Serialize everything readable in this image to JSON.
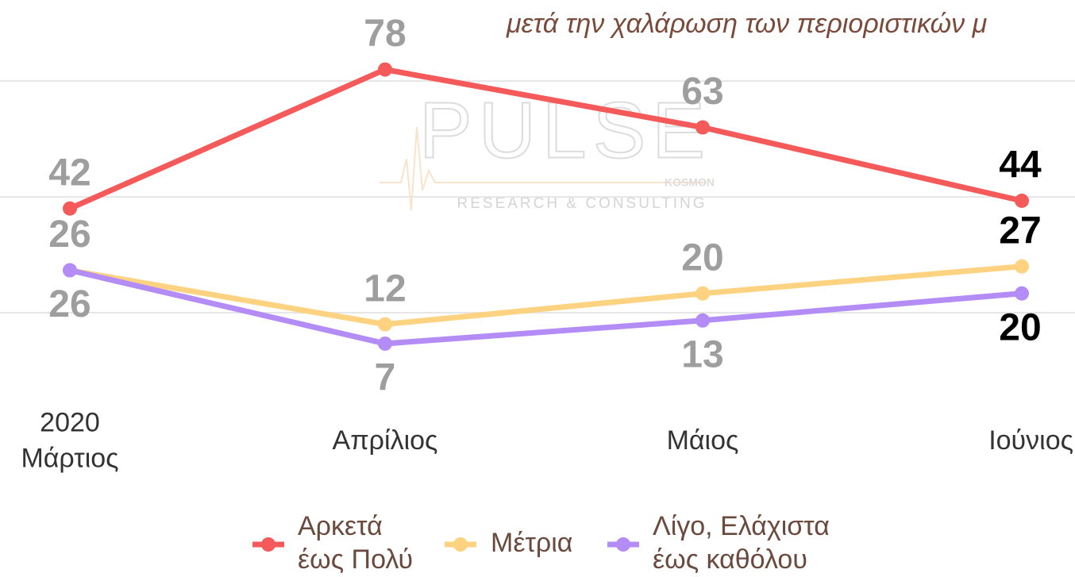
{
  "chart_data": {
    "type": "line",
    "title": "μετά την χαλάρωση των περιοριστικών μ",
    "categories": [
      "2020\nΜάρτιος",
      "Απρίλιος",
      "Μάιος",
      "Ιούνιος"
    ],
    "series": [
      {
        "name": "Αρκετά\nέως Πολύ",
        "color": "#f45a5a",
        "values": [
          42,
          78,
          63,
          44
        ]
      },
      {
        "name": "Μέτρια",
        "color": "#fdd381",
        "values": [
          26,
          12,
          20,
          27
        ]
      },
      {
        "name": "Λίγο, Ελάχιστα\nέως καθόλου",
        "color": "#b38cf5",
        "values": [
          26,
          7,
          13,
          20
        ]
      }
    ],
    "ylim": [
      0,
      96
    ],
    "yticks": [
      15,
      45,
      75
    ],
    "show_ytick_labels": false,
    "grid": true,
    "legend": "bottom",
    "watermark": {
      "brand": "PULSE",
      "sub": "KOSMON",
      "tagline": "RESEARCH & CONSULTING"
    }
  }
}
